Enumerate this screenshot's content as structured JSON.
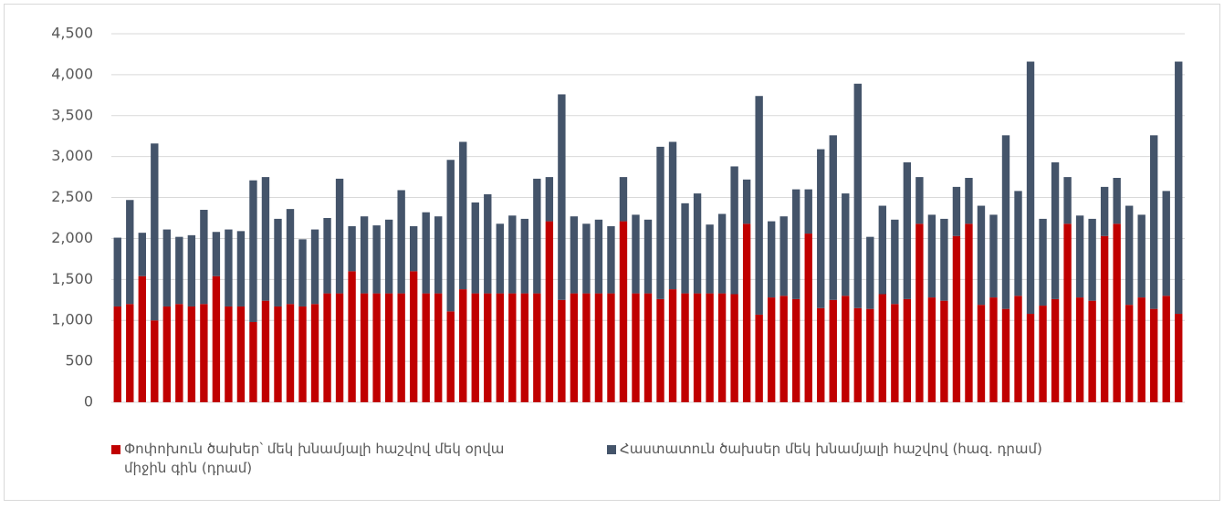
{
  "chart_data": {
    "type": "stacked-bar",
    "categories": [
      null,
      null,
      null,
      null,
      null,
      null,
      null,
      null,
      null,
      null,
      null,
      null,
      null,
      null,
      null,
      null,
      null,
      null,
      null,
      null,
      null,
      null,
      null,
      null,
      null,
      null,
      null,
      null,
      null,
      null,
      null,
      null,
      null,
      null,
      null,
      null,
      null,
      null,
      null,
      null,
      null,
      null,
      null,
      null,
      null,
      null,
      null,
      null,
      null,
      null,
      null,
      null,
      null,
      null,
      null,
      null,
      null,
      null,
      null,
      null,
      null,
      null,
      null,
      null,
      null,
      null,
      null,
      null,
      null,
      null,
      null,
      null,
      null,
      null,
      null,
      null,
      null,
      null,
      null,
      null,
      null,
      null,
      null,
      null,
      null,
      null,
      null
    ],
    "series": [
      {
        "name": "Փոփոխուն ծախեր՝ մեկ խնամյալի հաշվով մեկ օրվա միջին գին (դրամ)",
        "color": "#c00000",
        "values": [
          1170,
          1200,
          1540,
          1000,
          1170,
          1200,
          1170,
          1200,
          1540,
          1170,
          1170,
          980,
          1240,
          1170,
          1200,
          1170,
          1200,
          1330,
          1330,
          1600,
          1330,
          1330,
          1330,
          1330,
          1600,
          1330,
          1330,
          1110,
          1380,
          1330,
          1330,
          1330,
          1330,
          1330,
          1330,
          2210,
          1250,
          1330,
          1330,
          1330,
          1330,
          2210,
          1330,
          1330,
          1260,
          1380,
          1330,
          1330,
          1330,
          1330,
          1320,
          2180,
          1070,
          1280,
          1300,
          1260,
          2060,
          1150,
          1250,
          1300,
          1150,
          1140,
          1320,
          1200,
          1260,
          2180,
          1280,
          1240,
          2030,
          2180,
          1190,
          1280,
          1140,
          1300,
          1080,
          1180,
          1260,
          2180,
          1280,
          1240,
          2030,
          2180,
          1190,
          1280,
          1140,
          1300,
          1080
        ]
      },
      {
        "name": "Հաստատուն ծախսեր մեկ խնամյալի հաշվով (հազ. դրամ)",
        "color": "#44546a",
        "values": [
          840,
          1270,
          530,
          2160,
          940,
          820,
          870,
          1150,
          540,
          940,
          920,
          1730,
          1510,
          1070,
          1160,
          820,
          910,
          920,
          1400,
          550,
          940,
          830,
          900,
          1260,
          550,
          990,
          940,
          1850,
          1800,
          1110,
          1210,
          850,
          950,
          910,
          1400,
          540,
          2510,
          940,
          850,
          900,
          820,
          540,
          960,
          900,
          1860,
          1800,
          1100,
          1220,
          840,
          970,
          1560,
          540,
          2670,
          930,
          970,
          1340,
          540,
          1940,
          2010,
          1250,
          2740,
          880,
          1080,
          1030,
          1670,
          570,
          1010,
          1000,
          600,
          560,
          1210,
          1010,
          2120,
          1280,
          3080,
          1060,
          1670,
          570,
          1000,
          1000,
          600,
          560,
          1210,
          1010,
          2120,
          1280,
          3080
        ]
      }
    ],
    "ylim": [
      0,
      4500
    ],
    "yticks": [
      0,
      500,
      {
        "value": 1000,
        "label": "1,000"
      },
      {
        "value": 1500,
        "label": "1,500"
      },
      {
        "value": 2000,
        "label": "2,000"
      },
      {
        "value": 2500,
        "label": "2,500"
      },
      {
        "value": 3000,
        "label": "3,000"
      },
      {
        "value": 3500,
        "label": "3,500"
      },
      {
        "value": 4000,
        "label": "4,000"
      },
      {
        "value": 4500,
        "label": "4,500"
      }
    ],
    "grid": true,
    "legend": "bottom"
  }
}
